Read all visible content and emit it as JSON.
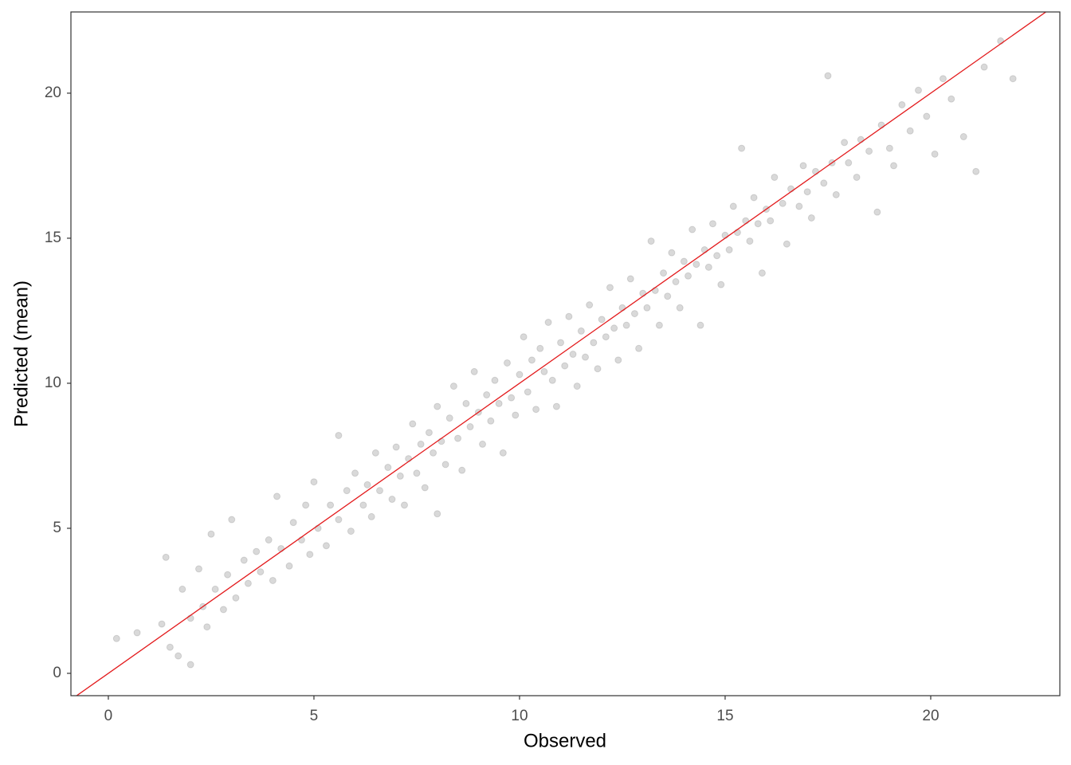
{
  "chart_data": {
    "type": "scatter",
    "x_label": "Observed",
    "y_label": "Predicted (mean)",
    "xlim": [
      -0.91,
      23.14
    ],
    "ylim": [
      -0.77,
      22.8
    ],
    "xticks": [
      0,
      5,
      10,
      15,
      20
    ],
    "yticks": [
      0,
      5,
      10,
      15,
      20
    ],
    "color": "#000000",
    "abline": {
      "intercept": 0,
      "slope": 1,
      "color": "#e31a1c"
    },
    "series": [
      {
        "x": [
          0.2,
          0.7,
          1.3,
          1.4,
          1.5,
          1.7,
          1.8,
          2.0,
          2.0,
          2.2,
          2.3,
          2.4,
          2.5,
          2.6,
          2.8,
          2.9,
          3.0,
          3.1,
          3.3,
          3.4,
          3.6,
          3.7,
          3.9,
          4.0,
          4.1,
          4.2,
          4.4,
          4.5,
          4.7,
          4.8,
          4.9,
          5.0,
          5.1,
          5.3,
          5.4,
          5.6,
          5.6,
          5.8,
          5.9,
          6.0,
          6.2,
          6.3,
          6.4,
          6.5,
          6.6,
          6.8,
          6.9,
          7.0,
          7.1,
          7.2,
          7.3,
          7.4,
          7.5,
          7.6,
          7.7,
          7.8,
          7.9,
          8.0,
          8.0,
          8.1,
          8.2,
          8.3,
          8.4,
          8.5,
          8.6,
          8.7,
          8.8,
          8.9,
          9.0,
          9.1,
          9.2,
          9.3,
          9.4,
          9.5,
          9.6,
          9.7,
          9.8,
          9.9,
          10.0,
          10.1,
          10.2,
          10.3,
          10.4,
          10.5,
          10.6,
          10.7,
          10.8,
          10.9,
          11.0,
          11.1,
          11.2,
          11.3,
          11.4,
          11.5,
          11.6,
          11.7,
          11.8,
          11.9,
          12.0,
          12.1,
          12.2,
          12.3,
          12.4,
          12.5,
          12.6,
          12.7,
          12.8,
          12.9,
          13.0,
          13.1,
          13.2,
          13.3,
          13.4,
          13.5,
          13.6,
          13.7,
          13.8,
          13.9,
          14.0,
          14.1,
          14.2,
          14.3,
          14.4,
          14.5,
          14.6,
          14.7,
          14.8,
          14.9,
          15.0,
          15.1,
          15.2,
          15.3,
          15.4,
          15.5,
          15.6,
          15.7,
          15.8,
          15.9,
          16.0,
          16.1,
          16.2,
          16.4,
          16.5,
          16.6,
          16.8,
          16.9,
          17.0,
          17.1,
          17.2,
          17.4,
          17.5,
          17.6,
          17.7,
          17.9,
          18.0,
          18.2,
          18.3,
          18.5,
          18.7,
          18.8,
          19.0,
          19.1,
          19.3,
          19.5,
          19.7,
          19.9,
          20.1,
          20.3,
          20.5,
          20.8,
          21.1,
          21.3,
          21.7,
          22.0
        ],
        "values": [
          1.2,
          1.4,
          1.7,
          4.0,
          0.9,
          0.6,
          2.9,
          0.3,
          1.9,
          3.6,
          2.3,
          1.6,
          4.8,
          2.9,
          2.2,
          3.4,
          5.3,
          2.6,
          3.9,
          3.1,
          4.2,
          3.5,
          4.6,
          3.2,
          6.1,
          4.3,
          3.7,
          5.2,
          4.6,
          5.8,
          4.1,
          6.6,
          5.0,
          4.4,
          5.8,
          8.2,
          5.3,
          6.3,
          4.9,
          6.9,
          5.8,
          6.5,
          5.4,
          7.6,
          6.3,
          7.1,
          6.0,
          7.8,
          6.8,
          5.8,
          7.4,
          8.6,
          6.9,
          7.9,
          6.4,
          8.3,
          7.6,
          9.2,
          5.5,
          8.0,
          7.2,
          8.8,
          9.9,
          8.1,
          7.0,
          9.3,
          8.5,
          10.4,
          9.0,
          7.9,
          9.6,
          8.7,
          10.1,
          9.3,
          7.6,
          10.7,
          9.5,
          8.9,
          10.3,
          11.6,
          9.7,
          10.8,
          9.1,
          11.2,
          10.4,
          12.1,
          10.1,
          9.2,
          11.4,
          10.6,
          12.3,
          11.0,
          9.9,
          11.8,
          10.9,
          12.7,
          11.4,
          10.5,
          12.2,
          11.6,
          13.3,
          11.9,
          10.8,
          12.6,
          12.0,
          13.6,
          12.4,
          11.2,
          13.1,
          12.6,
          14.9,
          13.2,
          12.0,
          13.8,
          13.0,
          14.5,
          13.5,
          12.6,
          14.2,
          13.7,
          15.3,
          14.1,
          12.0,
          14.6,
          14.0,
          15.5,
          14.4,
          13.4,
          15.1,
          14.6,
          16.1,
          15.2,
          18.1,
          15.6,
          14.9,
          16.4,
          15.5,
          13.8,
          16.0,
          15.6,
          17.1,
          16.2,
          14.8,
          16.7,
          16.1,
          17.5,
          16.6,
          15.7,
          17.3,
          16.9,
          20.6,
          17.6,
          16.5,
          18.3,
          17.6,
          17.1,
          18.4,
          18.0,
          15.9,
          18.9,
          18.1,
          17.5,
          19.6,
          18.7,
          20.1,
          19.2,
          17.9,
          20.5,
          19.8,
          18.5,
          17.3,
          20.9,
          21.8,
          20.5
        ]
      }
    ]
  }
}
